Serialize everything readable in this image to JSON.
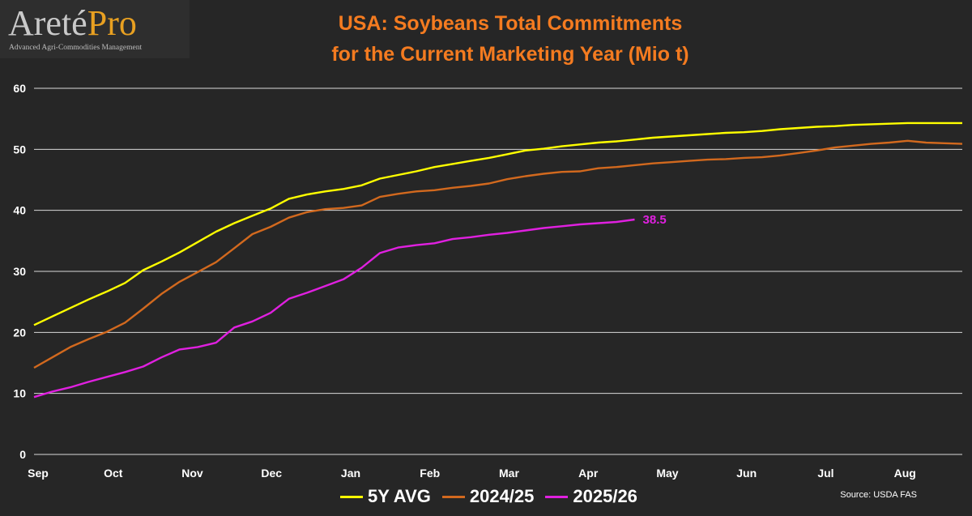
{
  "logo": {
    "brand_main": "Areté",
    "brand_accent": "Pro",
    "tagline": "Advanced Agri-Commodities Management"
  },
  "source": "Source:  USDA FAS",
  "colors": {
    "background": "#262626",
    "grid": "#d9d9d9",
    "5y_avg": "#ffff00",
    "2024_25": "#d2691e",
    "2025_26": "#e020e0",
    "title": "#f47b20"
  },
  "chart_data": {
    "type": "line",
    "title": "USA: Soybeans Total Commitments",
    "subtitle": "for the Current Marketing Year (Mio t)",
    "xlabel": "",
    "ylabel": "",
    "ylim": [
      0,
      60
    ],
    "yticks": [
      0,
      10,
      20,
      30,
      40,
      50,
      60
    ],
    "xlim": [
      0,
      51
    ],
    "month_ticks": [
      {
        "label": "Sep",
        "x": 0
      },
      {
        "label": "Oct",
        "x": 4.35
      },
      {
        "label": "Nov",
        "x": 8.7
      },
      {
        "label": "Dec",
        "x": 13.05
      },
      {
        "label": "Jan",
        "x": 17.4
      },
      {
        "label": "Feb",
        "x": 21.75
      },
      {
        "label": "Mar",
        "x": 26.1
      },
      {
        "label": "Apr",
        "x": 30.45
      },
      {
        "label": "May",
        "x": 34.8
      },
      {
        "label": "Jun",
        "x": 39.15
      },
      {
        "label": "Jul",
        "x": 43.5
      },
      {
        "label": "Aug",
        "x": 47.85
      }
    ],
    "grid": true,
    "legend": "bottom",
    "series": [
      {
        "name": "5Y AVG",
        "color": "#ffff00",
        "values": [
          21.2,
          22.6,
          24.0,
          25.4,
          26.7,
          28.1,
          30.2,
          31.6,
          33.1,
          34.8,
          36.5,
          37.9,
          39.1,
          40.3,
          41.9,
          42.6,
          43.1,
          43.5,
          44.1,
          45.2,
          45.8,
          46.4,
          47.1,
          47.6,
          48.1,
          48.6,
          49.2,
          49.8,
          50.1,
          50.5,
          50.8,
          51.1,
          51.3,
          51.6,
          51.9,
          52.1,
          52.3,
          52.5,
          52.7,
          52.8,
          53.0,
          53.3,
          53.5,
          53.7,
          53.8,
          54.0,
          54.1,
          54.2,
          54.3,
          54.3,
          54.3,
          54.3
        ]
      },
      {
        "name": "2024/25",
        "color": "#d2691e",
        "values": [
          14.2,
          15.9,
          17.6,
          18.9,
          20.1,
          21.6,
          23.9,
          26.3,
          28.3,
          29.9,
          31.5,
          33.8,
          36.1,
          37.3,
          38.8,
          39.7,
          40.2,
          40.4,
          40.8,
          42.2,
          42.7,
          43.1,
          43.3,
          43.7,
          44.0,
          44.4,
          45.1,
          45.6,
          46.0,
          46.3,
          46.4,
          46.9,
          47.1,
          47.4,
          47.7,
          47.9,
          48.1,
          48.3,
          48.4,
          48.6,
          48.7,
          49.0,
          49.4,
          49.8,
          50.3,
          50.6,
          50.9,
          51.1,
          51.4,
          51.1,
          51.0,
          50.9
        ]
      },
      {
        "name": "2025/26",
        "color": "#e020e0",
        "values": [
          9.4,
          10.3,
          11.0,
          11.9,
          12.7,
          13.5,
          14.4,
          15.9,
          17.2,
          17.6,
          18.3,
          20.8,
          21.8,
          23.2,
          25.5,
          26.5,
          27.6,
          28.7,
          30.6,
          33.0,
          33.9,
          34.3,
          34.6,
          35.3,
          35.6,
          36.0,
          36.3,
          36.7,
          37.1,
          37.4,
          37.7,
          37.9,
          38.1,
          38.5
        ],
        "end_label": "38.5"
      }
    ]
  }
}
